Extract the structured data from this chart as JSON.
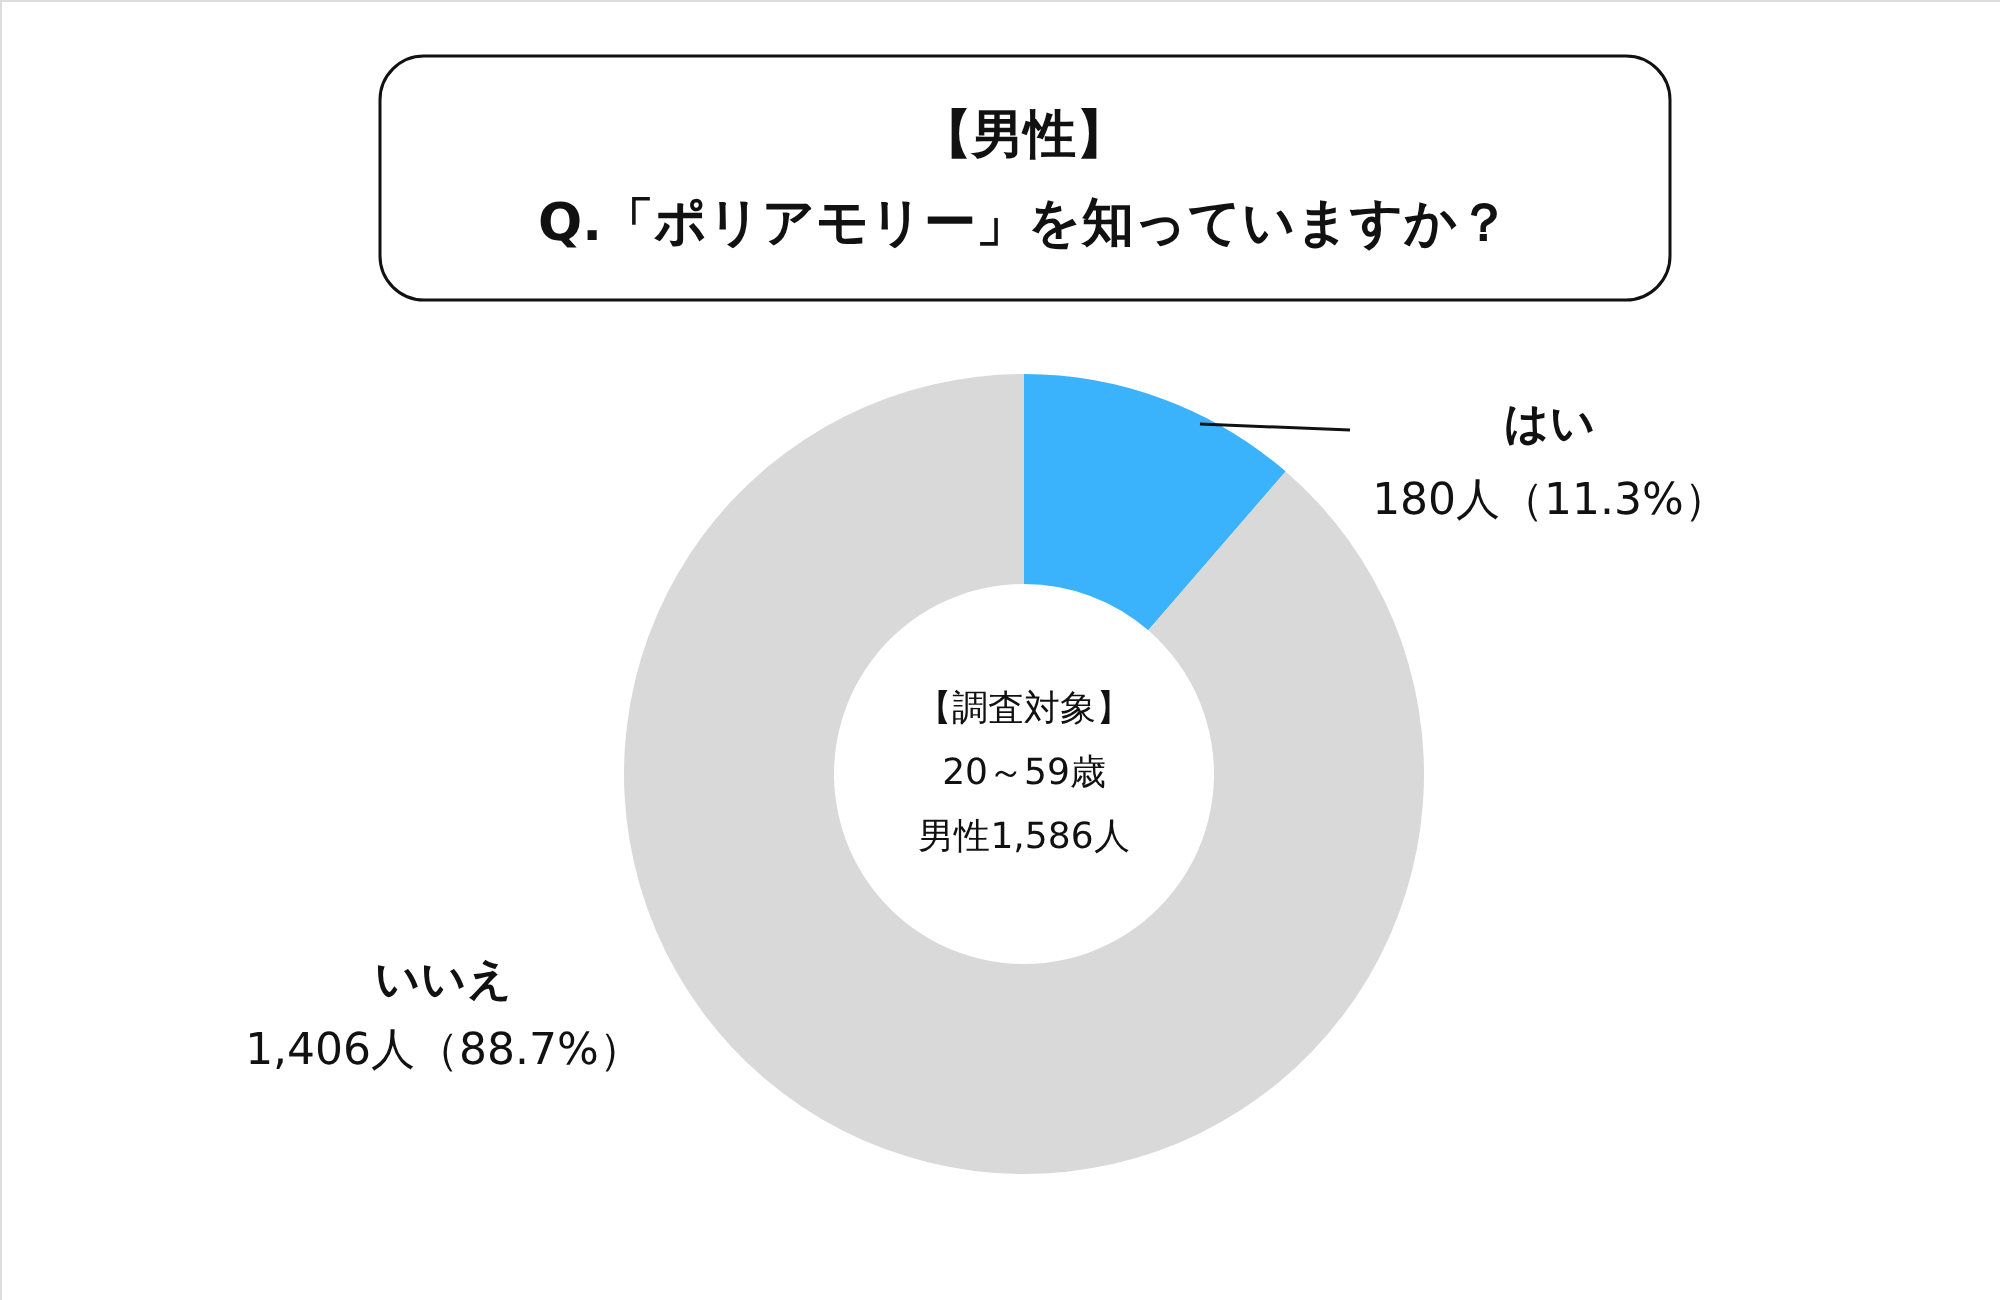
{
  "chart_data": {
    "type": "donut",
    "title": "【男性】",
    "subtitle": "Q.「ポリアモリー」を知っていますか？",
    "categories": [
      "はい",
      "いいえ"
    ],
    "values": [
      180,
      1406
    ],
    "colors": [
      "#3bb3fc",
      "#d9d9d9"
    ],
    "value_labels": [
      "180人（11.3%）",
      "1,406人（88.7%）"
    ],
    "annotations": [
      "【調査対象】",
      "20～59歳",
      "男性1,586人"
    ]
  }
}
